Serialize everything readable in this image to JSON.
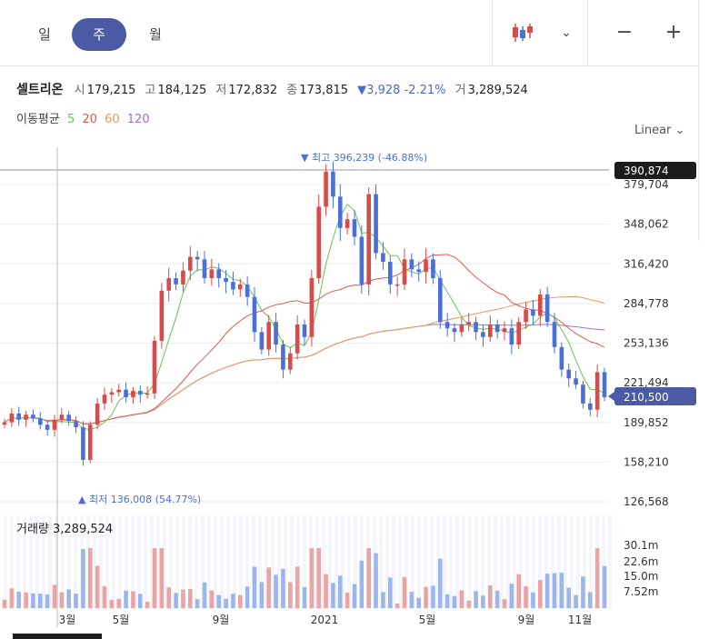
{
  "tabs": [
    {
      "label": "일"
    },
    {
      "label": "주"
    },
    {
      "label": "월"
    }
  ],
  "active_tab": "주",
  "controls": {
    "candle_icon": "candlestick-icon",
    "dropdown": "chevron-down-icon",
    "zoom_out": "−",
    "zoom_in": "+"
  },
  "quote": {
    "name": "셀트리온",
    "open_label": "시",
    "open": "179,215",
    "high_label": "고",
    "high": "184,125",
    "low_label": "저",
    "low": "172,832",
    "close_label": "종",
    "close": "173,815",
    "change": "▼3,928 -2.21%",
    "volume_label": "거",
    "volume": "3,289,524"
  },
  "moving_average": {
    "label": "이동평균",
    "periods": [
      "5",
      "20",
      "60",
      "120"
    ],
    "colors": [
      "#6dbf5a",
      "#e05a50",
      "#e89a5a",
      "#9b6fd4"
    ]
  },
  "scale": "Linear",
  "colors": {
    "up": "#d94a4a",
    "down": "#4a6fd8",
    "accent": "#4b5aa5",
    "volume_up": "#eba3a3",
    "volume_down": "#9bb6ee"
  },
  "price_axis": {
    "ticks": [
      "379,704",
      "348,062",
      "316,420",
      "284,778",
      "253,136",
      "221,494",
      "189,852",
      "158,210",
      "126,568"
    ],
    "crosshair_label": "390,874",
    "current_label": "210,500"
  },
  "annotations": {
    "high": "▼ 최고 396,239 (-46.88%)",
    "low": "▲ 최저 136,008 (54.77%)"
  },
  "volume_panel": {
    "label": "거래량",
    "value": "3,289,524",
    "ticks": [
      "30.1m",
      "22.6m",
      "15.0m",
      "7.52m"
    ]
  },
  "time_axis": [
    "3월",
    "5월",
    "9월",
    "2021",
    "5월",
    "9월",
    "11월"
  ],
  "chart_data": {
    "type": "candlestick",
    "interval": "weekly",
    "ylim": [
      110000,
      400000
    ],
    "close": [
      190000,
      197000,
      192000,
      196000,
      193000,
      188000,
      184000,
      192000,
      196000,
      191000,
      186000,
      160000,
      188000,
      205000,
      212000,
      214000,
      216000,
      210000,
      215000,
      212000,
      213000,
      255000,
      295000,
      305000,
      300000,
      311000,
      322000,
      320000,
      305000,
      312000,
      305000,
      302000,
      296000,
      300000,
      290000,
      262000,
      248000,
      270000,
      252000,
      232000,
      245000,
      268000,
      258000,
      305000,
      362000,
      390000,
      370000,
      345000,
      352000,
      338000,
      300000,
      372000,
      325000,
      318000,
      300000,
      300000,
      320000,
      312000,
      310000,
      320000,
      305000,
      270000,
      265000,
      262000,
      268000,
      270000,
      262000,
      258000,
      268000,
      262000,
      265000,
      252000,
      270000,
      280000,
      275000,
      292000,
      270000,
      250000,
      232000,
      225000,
      220000,
      205000,
      200000,
      230000,
      210000
    ],
    "ma5_color": "#6dbf5a",
    "ma20_color": "#e05a50",
    "ma60_color": "#e89a5a",
    "ma120_color": "#9b6fd4"
  }
}
